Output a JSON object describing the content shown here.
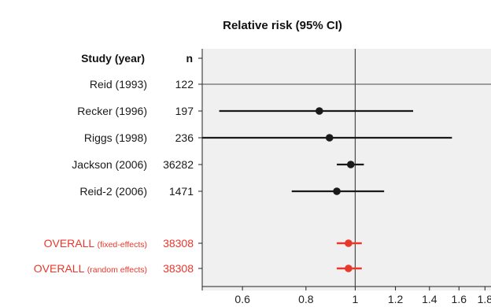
{
  "chart_data": {
    "type": "forest",
    "title": "Relative risk (95% CI)",
    "header": {
      "study": "Study (year)",
      "n": "n"
    },
    "scale": "log",
    "xlim": [
      0.5,
      1.85
    ],
    "xticks": [
      0.6,
      0.8,
      1,
      1.2,
      1.4,
      1.6,
      1.8
    ],
    "xtick_labels": [
      "0.6",
      "0.8",
      "1",
      "1.2",
      "1.4",
      "1.6",
      "1.8"
    ],
    "reference_line": 1,
    "studies": [
      {
        "label": "Reid (1993)",
        "n": "122",
        "rr": null,
        "lo": null,
        "hi": null
      },
      {
        "label": "Recker (1996)",
        "n": "197",
        "rr": 0.85,
        "lo": 0.54,
        "hi": 1.3
      },
      {
        "label": "Riggs (1998)",
        "n": "236",
        "rr": 0.89,
        "lo": 0.5,
        "hi": 1.55
      },
      {
        "label": "Jackson (2006)",
        "n": "36282",
        "rr": 0.98,
        "lo": 0.92,
        "hi": 1.04
      },
      {
        "label": "Reid-2 (2006)",
        "n": "1471",
        "rr": 0.92,
        "lo": 0.75,
        "hi": 1.14
      }
    ],
    "overall": [
      {
        "label": "OVERALL",
        "sub": "(fixed-effects)",
        "n": "38308",
        "rr": 0.97,
        "lo": 0.92,
        "hi": 1.03
      },
      {
        "label": "OVERALL",
        "sub": "(random effects)",
        "n": "38308",
        "rr": 0.97,
        "lo": 0.92,
        "hi": 1.03
      }
    ],
    "colors": {
      "study": "#1a1a1a",
      "overall": "#e8382b",
      "panel": "#f0f0f0",
      "grid": "#4a4a4a"
    }
  }
}
